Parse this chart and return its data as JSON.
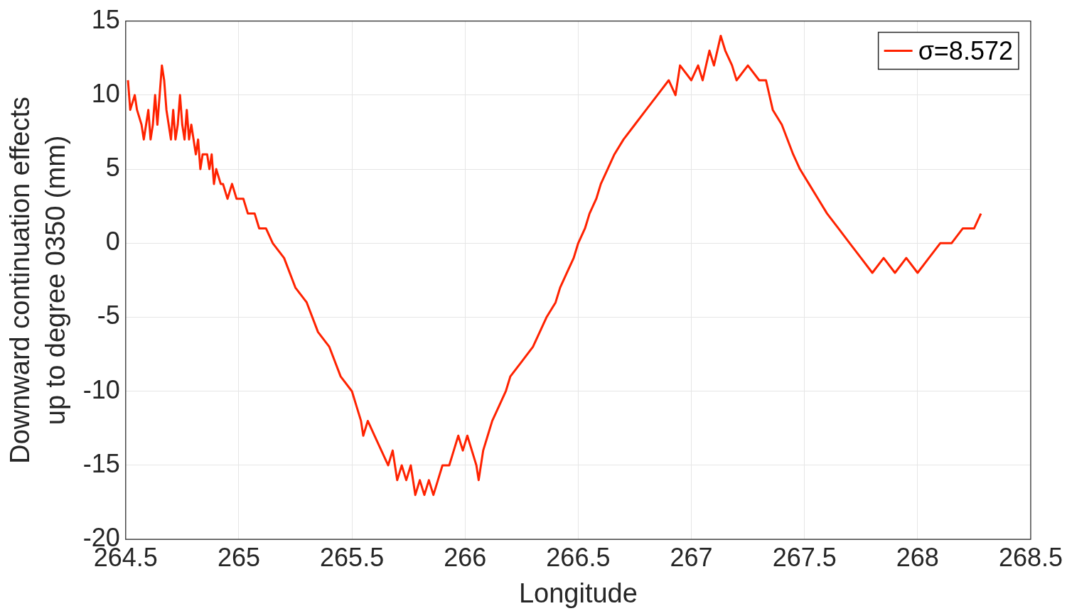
{
  "chart_data": {
    "type": "line",
    "xlabel": "Longitude",
    "ylabel": "Downward continuation effects\nup to degree 0350 (mm)",
    "xlim": [
      264.5,
      268.5
    ],
    "xticks": [
      264.5,
      265,
      265.5,
      266,
      266.5,
      267,
      267.5,
      268,
      268.5
    ],
    "ylim": [
      -20,
      15
    ],
    "yticks": [
      -20,
      -15,
      -10,
      -5,
      0,
      5,
      10,
      15
    ],
    "grid": true,
    "legend": "top right",
    "marker": "none",
    "line_style": "solid",
    "series": [
      {
        "name": "σ=8.572",
        "color": "#ff2200",
        "x": [
          264.51,
          264.52,
          264.54,
          264.55,
          264.57,
          264.58,
          264.6,
          264.61,
          264.62,
          264.63,
          264.64,
          264.65,
          264.66,
          264.67,
          264.68,
          264.69,
          264.7,
          264.71,
          264.72,
          264.73,
          264.74,
          264.75,
          264.76,
          264.77,
          264.78,
          264.79,
          264.8,
          264.81,
          264.82,
          264.83,
          264.84,
          264.86,
          264.87,
          264.88,
          264.89,
          264.9,
          264.92,
          264.93,
          264.95,
          264.97,
          264.99,
          265.02,
          265.04,
          265.07,
          265.09,
          265.12,
          265.15,
          265.2,
          265.25,
          265.3,
          265.35,
          265.4,
          265.45,
          265.5,
          265.52,
          265.54,
          265.55,
          265.57,
          265.6,
          265.63,
          265.66,
          265.68,
          265.7,
          265.72,
          265.74,
          265.76,
          265.78,
          265.8,
          265.82,
          265.84,
          265.86,
          265.88,
          265.9,
          265.93,
          265.95,
          265.97,
          265.99,
          266.01,
          266.03,
          266.05,
          266.06,
          266.08,
          266.1,
          266.12,
          266.15,
          266.18,
          266.2,
          266.25,
          266.3,
          266.33,
          266.36,
          266.4,
          266.42,
          266.45,
          266.48,
          266.5,
          266.53,
          266.55,
          266.58,
          266.6,
          266.63,
          266.66,
          266.7,
          266.75,
          266.8,
          266.85,
          266.9,
          266.93,
          266.95,
          267.0,
          267.03,
          267.05,
          267.08,
          267.1,
          267.13,
          267.15,
          267.18,
          267.2,
          267.25,
          267.3,
          267.33,
          267.36,
          267.4,
          267.45,
          267.48,
          267.52,
          267.56,
          267.6,
          267.65,
          267.7,
          267.75,
          267.8,
          267.85,
          267.9,
          267.95,
          268.0,
          268.05,
          268.1,
          268.15,
          268.2,
          268.25,
          268.28
        ],
        "values": [
          11,
          9,
          10,
          9,
          8,
          7,
          9,
          7,
          8,
          10,
          8,
          10,
          12,
          11,
          9,
          8,
          7,
          9,
          7,
          8,
          10,
          8,
          7,
          9,
          7,
          8,
          7,
          6,
          7,
          5,
          6,
          6,
          5,
          6,
          4,
          5,
          4,
          4,
          3,
          4,
          3,
          3,
          2,
          2,
          1,
          1,
          0,
          -1,
          -3,
          -4,
          -6,
          -7,
          -9,
          -10,
          -11,
          -12,
          -13,
          -12,
          -13,
          -14,
          -15,
          -14,
          -16,
          -15,
          -16,
          -15,
          -17,
          -16,
          -17,
          -16,
          -17,
          -16,
          -15,
          -15,
          -14,
          -13,
          -14,
          -13,
          -14,
          -15,
          -16,
          -14,
          -13,
          -12,
          -11,
          -10,
          -9,
          -8,
          -7,
          -6,
          -5,
          -4,
          -3,
          -2,
          -1,
          0,
          1,
          2,
          3,
          4,
          5,
          6,
          7,
          8,
          9,
          10,
          11,
          10,
          12,
          11,
          12,
          11,
          13,
          12,
          14,
          13,
          12,
          11,
          12,
          11,
          11,
          9,
          8,
          6,
          5,
          4,
          3,
          2,
          1,
          0,
          -1,
          -2,
          -1,
          -2,
          -1,
          -2,
          -1,
          0,
          0,
          1,
          1,
          2
        ]
      }
    ]
  }
}
